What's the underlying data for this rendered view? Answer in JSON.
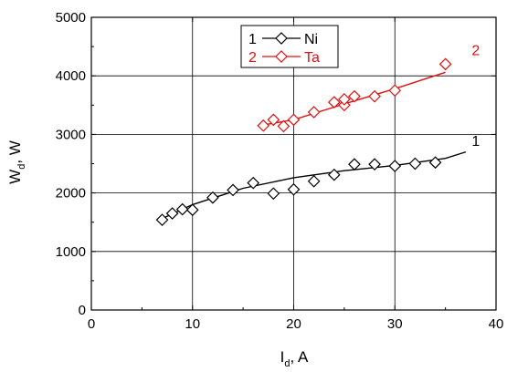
{
  "chart_data": {
    "type": "scatter",
    "xlabel": {
      "main": "I",
      "sub": "d",
      "unit": ", A"
    },
    "ylabel": {
      "main": "W",
      "sub": "d",
      "unit": ", W"
    },
    "xlim": [
      0,
      40
    ],
    "ylim": [
      0,
      5000
    ],
    "x_ticks": [
      0,
      10,
      20,
      30,
      40
    ],
    "y_ticks": [
      0,
      1000,
      2000,
      3000,
      4000,
      5000
    ],
    "x_tick_labels": [
      "0",
      "10",
      "20",
      "30",
      "40"
    ],
    "y_tick_labels": [
      "0",
      "1000",
      "2000",
      "3000",
      "4000",
      "5000"
    ],
    "grid": true,
    "legend_position": "top-center",
    "series": [
      {
        "name": "Ni",
        "number": "1",
        "color": "#000000",
        "marker": "diamond",
        "points": [
          [
            7,
            1540
          ],
          [
            8,
            1650
          ],
          [
            9,
            1720
          ],
          [
            10,
            1710
          ],
          [
            12,
            1920
          ],
          [
            14,
            2050
          ],
          [
            16,
            2170
          ],
          [
            18,
            1990
          ],
          [
            20,
            2060
          ],
          [
            22,
            2200
          ],
          [
            24,
            2310
          ],
          [
            26,
            2490
          ],
          [
            28,
            2490
          ],
          [
            30,
            2460
          ],
          [
            32,
            2500
          ],
          [
            34,
            2520
          ]
        ],
        "fit": [
          [
            7,
            1560
          ],
          [
            10,
            1800
          ],
          [
            15,
            2080
          ],
          [
            20,
            2260
          ],
          [
            25,
            2380
          ],
          [
            30,
            2470
          ],
          [
            35,
            2590
          ],
          [
            37,
            2700
          ]
        ],
        "curve_label": "1",
        "curve_label_at": [
          38,
          2800
        ]
      },
      {
        "name": "Ta",
        "number": "2",
        "color": "#e01010",
        "marker": "diamond",
        "points": [
          [
            17,
            3150
          ],
          [
            18,
            3250
          ],
          [
            19,
            3140
          ],
          [
            20,
            3250
          ],
          [
            22,
            3380
          ],
          [
            24,
            3550
          ],
          [
            25,
            3500
          ],
          [
            25,
            3600
          ],
          [
            26,
            3650
          ],
          [
            28,
            3650
          ],
          [
            30,
            3750
          ],
          [
            35,
            4200
          ]
        ],
        "fit": [
          [
            17,
            3160
          ],
          [
            20,
            3250
          ],
          [
            25,
            3520
          ],
          [
            30,
            3780
          ],
          [
            35,
            4060
          ]
        ],
        "curve_label": "2",
        "curve_label_at": [
          38,
          4350
        ]
      }
    ]
  }
}
